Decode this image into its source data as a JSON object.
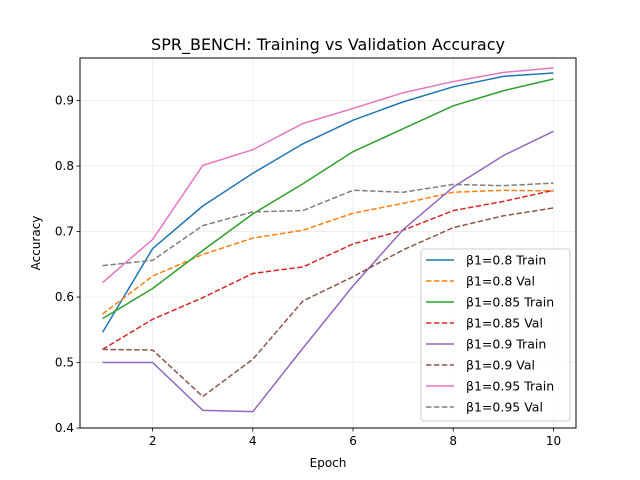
{
  "chart_data": {
    "type": "line",
    "title": "SPR_BENCH: Training vs Validation Accuracy",
    "xlabel": "Epoch",
    "ylabel": "Accuracy",
    "xlim": [
      0.55,
      10.45
    ],
    "ylim": [
      0.4,
      0.965
    ],
    "xticks": [
      2,
      4,
      6,
      8,
      10
    ],
    "yticks": [
      0.4,
      0.5,
      0.6,
      0.7,
      0.8,
      0.9
    ],
    "grid": true,
    "legend_position": "lower right",
    "x": [
      1,
      2,
      3,
      4,
      5,
      6,
      7,
      8,
      9,
      10
    ],
    "series": [
      {
        "name": "β1=0.8 Train",
        "color": "#1f77b4",
        "dash": "solid",
        "values": [
          0.546,
          0.674,
          0.739,
          0.789,
          0.834,
          0.87,
          0.898,
          0.921,
          0.937,
          0.942
        ]
      },
      {
        "name": "β1=0.8 Val",
        "color": "#ff7f0e",
        "dash": "dashed",
        "values": [
          0.574,
          0.632,
          0.665,
          0.69,
          0.702,
          0.728,
          0.743,
          0.76,
          0.763,
          0.762
        ]
      },
      {
        "name": "β1=0.85 Train",
        "color": "#2ca02c",
        "dash": "solid",
        "values": [
          0.567,
          0.613,
          0.671,
          0.727,
          0.773,
          0.822,
          0.857,
          0.892,
          0.915,
          0.933
        ]
      },
      {
        "name": "β1=0.85 Val",
        "color": "#d62728",
        "dash": "dashed",
        "values": [
          0.52,
          0.566,
          0.599,
          0.636,
          0.646,
          0.681,
          0.702,
          0.732,
          0.746,
          0.763
        ]
      },
      {
        "name": "β1=0.9 Train",
        "color": "#9467bd",
        "dash": "solid",
        "values": [
          0.5,
          0.5,
          0.427,
          0.425,
          0.522,
          0.617,
          0.703,
          0.768,
          0.816,
          0.853
        ]
      },
      {
        "name": "β1=0.9 Val",
        "color": "#8c564b",
        "dash": "dashed",
        "values": [
          0.52,
          0.519,
          0.448,
          0.505,
          0.594,
          0.631,
          0.672,
          0.706,
          0.724,
          0.736
        ]
      },
      {
        "name": "β1=0.95 Train",
        "color": "#e377c2",
        "dash": "solid",
        "values": [
          0.622,
          0.688,
          0.801,
          0.825,
          0.865,
          0.888,
          0.912,
          0.929,
          0.943,
          0.95
        ]
      },
      {
        "name": "β1=0.95 Val",
        "color": "#7f7f7f",
        "dash": "dashed",
        "values": [
          0.648,
          0.656,
          0.709,
          0.73,
          0.732,
          0.763,
          0.76,
          0.772,
          0.77,
          0.774
        ]
      }
    ]
  }
}
